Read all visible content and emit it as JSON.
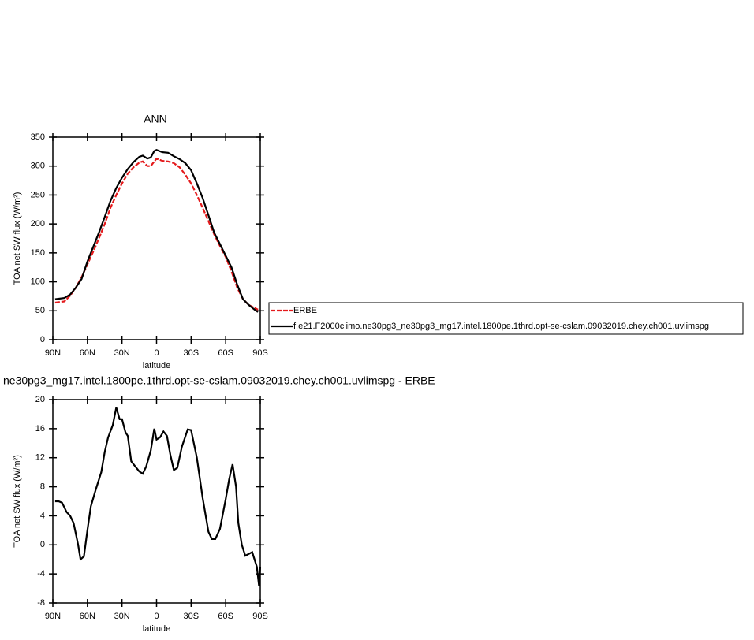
{
  "chart_data": [
    {
      "type": "line",
      "title": "ANN",
      "xlabel": "latitude",
      "ylabel": "TOA net SW flux (W/m²)",
      "x": [
        88,
        80,
        75,
        70,
        65,
        60,
        55,
        50,
        45,
        40,
        35,
        30,
        25,
        20,
        15,
        12,
        8,
        5,
        2,
        0,
        -5,
        -10,
        -15,
        -20,
        -25,
        -30,
        -35,
        -40,
        -45,
        -50,
        -55,
        -60,
        -65,
        -70,
        -75,
        -80,
        -85,
        -88
      ],
      "series": [
        {
          "name": "ERBE",
          "color": "#e41a1c",
          "line_style": "dashed",
          "values": [
            64,
            66,
            76,
            90,
            108,
            130,
            152,
            175,
            200,
            228,
            250,
            270,
            287,
            298,
            306,
            308,
            300,
            300,
            308,
            313,
            309,
            308,
            305,
            298,
            285,
            270,
            250,
            228,
            205,
            182,
            162,
            143,
            118,
            90,
            70,
            60,
            55,
            52
          ]
        },
        {
          "name": "f.e21.F2000climo.ne30pg3_ne30pg3_mg17.intel.1800pe.1thrd.opt-se-cslam.09032019.chey.ch001.uvlimspg",
          "color": "#000000",
          "line_style": "solid",
          "values": [
            70,
            72,
            78,
            90,
            105,
            135,
            160,
            185,
            212,
            240,
            262,
            280,
            295,
            307,
            316,
            318,
            313,
            315,
            326,
            328,
            324,
            323,
            317,
            312,
            305,
            293,
            270,
            245,
            215,
            185,
            165,
            145,
            125,
            95,
            70,
            60,
            52,
            48
          ]
        }
      ],
      "xlim": [
        90,
        -90
      ],
      "xticks": [
        {
          "value": 90,
          "label": "90N"
        },
        {
          "value": 60,
          "label": "60N"
        },
        {
          "value": 30,
          "label": "30N"
        },
        0,
        {
          "value": -30,
          "label": "30S"
        },
        {
          "value": -60,
          "label": "60S"
        },
        {
          "value": -90,
          "label": "90S"
        }
      ],
      "ylim": [
        0,
        350
      ],
      "yticks": [
        0,
        50,
        100,
        150,
        200,
        250,
        300,
        350
      ],
      "legend": "right"
    },
    {
      "type": "line",
      "title": "ne30pg3_mg17.intel.1800pe.1thrd.opt-se-cslam.09032019.chey.ch001.uvlimspg - ERBE",
      "xlabel": "latitude",
      "ylabel": "TOA net SW flux (W/m²)",
      "x": [
        88,
        85,
        82,
        78,
        75,
        72,
        68,
        66,
        63,
        60,
        57,
        53,
        48,
        45,
        42,
        38,
        35,
        32,
        30,
        27,
        25,
        22,
        18,
        15,
        12,
        9,
        5,
        2,
        0,
        -3,
        -6,
        -9,
        -12,
        -15,
        -18,
        -22,
        -27,
        -30,
        -35,
        -40,
        -45,
        -48,
        -51,
        -55,
        -60,
        -63,
        -66,
        -69,
        -71,
        -74,
        -77,
        -83,
        -87,
        -89,
        -90
      ],
      "series": [
        {
          "color": "#000000",
          "line_style": "solid",
          "values": [
            6,
            6,
            5.8,
            4.5,
            4,
            3,
            0,
            -2,
            -1.6,
            2,
            5.3,
            7.5,
            10,
            12.8,
            14.8,
            16.5,
            18.9,
            17.3,
            17.3,
            15.5,
            15,
            11.5,
            10.7,
            10.1,
            9.8,
            10.8,
            13,
            16,
            14.5,
            14.8,
            15.6,
            15,
            12.4,
            10.3,
            10.6,
            13.5,
            15.9,
            15.8,
            12,
            6.5,
            1.8,
            0.8,
            0.8,
            2.2,
            6.3,
            9,
            11.1,
            8,
            3,
            0,
            -1.5,
            -1,
            -3,
            -5.7,
            -3
          ]
        }
      ],
      "xlim": [
        90,
        -90
      ],
      "xticks": [
        {
          "value": 90,
          "label": "90N"
        },
        {
          "value": 60,
          "label": "60N"
        },
        {
          "value": 30,
          "label": "30N"
        },
        0,
        {
          "value": -30,
          "label": "30S"
        },
        {
          "value": -60,
          "label": "60S"
        },
        {
          "value": -90,
          "label": "90S"
        }
      ],
      "ylim": [
        -8,
        20
      ],
      "yticks": [
        -8,
        -4,
        0,
        4,
        8,
        12,
        16,
        20
      ]
    }
  ]
}
